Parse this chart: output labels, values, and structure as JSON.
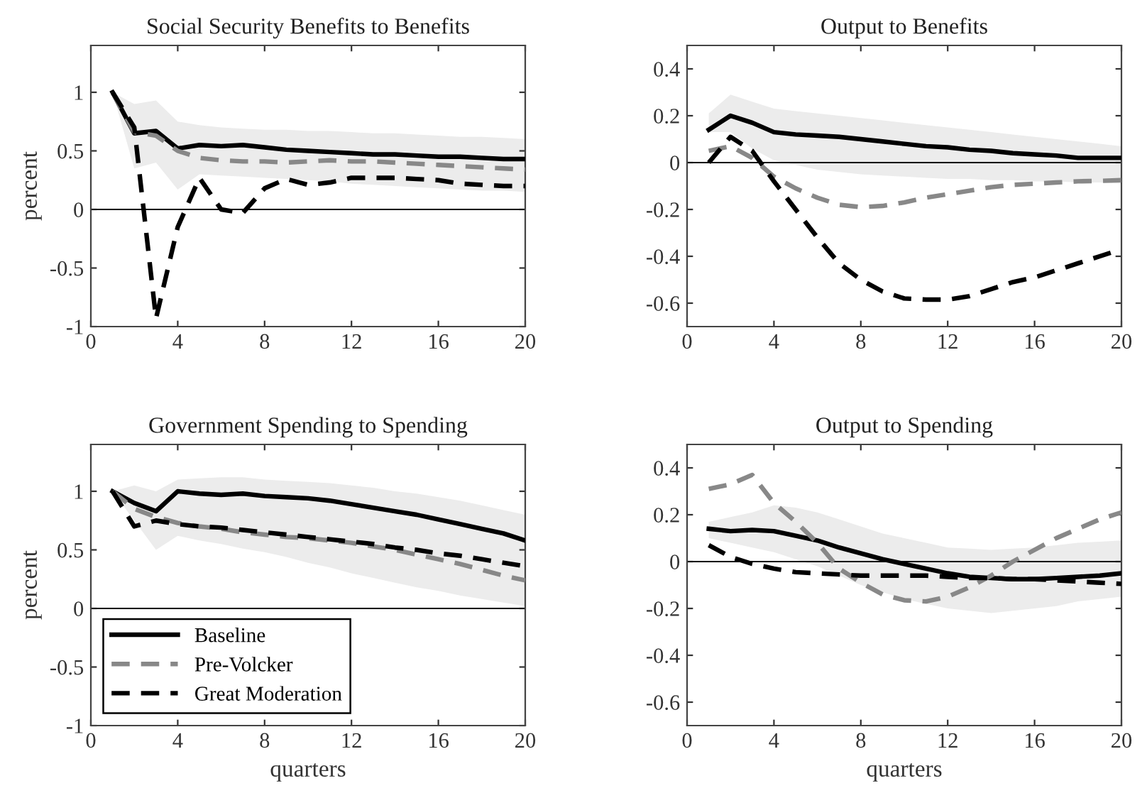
{
  "chart_data": [
    {
      "type": "line",
      "title": "Social Security Benefits to Benefits",
      "ylabel": "percent",
      "x": [
        1,
        2,
        3,
        4,
        5,
        6,
        7,
        8,
        9,
        10,
        11,
        12,
        13,
        14,
        15,
        16,
        17,
        18,
        19,
        20
      ],
      "xlim": [
        0,
        20
      ],
      "xticks": [
        0,
        4,
        8,
        12,
        16,
        20
      ],
      "ylim": [
        -1,
        1.4
      ],
      "yticks": [
        -1,
        -0.5,
        0,
        0.5,
        1
      ],
      "grid": false,
      "legend": false,
      "ref_lines": [
        {
          "axis": "y",
          "value": 0,
          "color": "#000000"
        }
      ],
      "series": [
        {
          "color": "#000000",
          "line_style": "solid",
          "values": [
            1.0,
            0.65,
            0.67,
            0.52,
            0.55,
            0.54,
            0.55,
            0.53,
            0.51,
            0.5,
            0.49,
            0.48,
            0.47,
            0.47,
            0.46,
            0.45,
            0.45,
            0.44,
            0.43,
            0.43
          ],
          "lower": [
            1.0,
            0.35,
            0.4,
            0.17,
            0.3,
            0.29,
            0.28,
            0.27,
            0.26,
            0.25,
            0.24,
            0.22,
            0.21,
            0.2,
            0.19,
            0.18,
            0.17,
            0.16,
            0.16,
            0.15
          ],
          "upper": [
            1.0,
            0.9,
            0.93,
            0.75,
            0.72,
            0.7,
            0.69,
            0.68,
            0.68,
            0.67,
            0.67,
            0.66,
            0.65,
            0.65,
            0.64,
            0.63,
            0.62,
            0.62,
            0.61,
            0.6
          ]
        },
        {
          "color": "#888888",
          "line_style": "dashed",
          "values": [
            1.0,
            0.66,
            0.63,
            0.5,
            0.44,
            0.42,
            0.41,
            0.41,
            0.4,
            0.41,
            0.42,
            0.41,
            0.41,
            0.4,
            0.39,
            0.38,
            0.37,
            0.36,
            0.35,
            0.34
          ]
        },
        {
          "color": "#000000",
          "line_style": "dashed",
          "values": [
            1.0,
            0.7,
            -0.93,
            -0.15,
            0.27,
            0.0,
            -0.03,
            0.18,
            0.26,
            0.21,
            0.23,
            0.27,
            0.27,
            0.27,
            0.26,
            0.25,
            0.22,
            0.21,
            0.2,
            0.2
          ]
        }
      ]
    },
    {
      "type": "line",
      "title": "Output to Benefits",
      "x": [
        1,
        2,
        3,
        4,
        5,
        6,
        7,
        8,
        9,
        10,
        11,
        12,
        13,
        14,
        15,
        16,
        17,
        18,
        19,
        20
      ],
      "xlim": [
        0,
        20
      ],
      "xticks": [
        0,
        4,
        8,
        12,
        16,
        20
      ],
      "ylim": [
        -0.7,
        0.5
      ],
      "yticks": [
        -0.6,
        -0.4,
        -0.2,
        0,
        0.2,
        0.4
      ],
      "grid": false,
      "legend": false,
      "ref_lines": [
        {
          "axis": "y",
          "value": 0,
          "color": "#000000"
        }
      ],
      "series": [
        {
          "color": "#000000",
          "line_style": "solid",
          "values": [
            0.14,
            0.2,
            0.17,
            0.13,
            0.12,
            0.115,
            0.11,
            0.1,
            0.09,
            0.08,
            0.07,
            0.065,
            0.055,
            0.05,
            0.04,
            0.035,
            0.03,
            0.02,
            0.02,
            0.02
          ],
          "lower": [
            0.13,
            0.13,
            0.06,
            0.01,
            -0.01,
            -0.03,
            -0.04,
            -0.05,
            -0.055,
            -0.06,
            -0.065,
            -0.07,
            -0.07,
            -0.075,
            -0.075,
            -0.08,
            -0.08,
            -0.085,
            -0.085,
            -0.09
          ],
          "upper": [
            0.21,
            0.29,
            0.26,
            0.23,
            0.22,
            0.21,
            0.2,
            0.19,
            0.18,
            0.17,
            0.16,
            0.15,
            0.14,
            0.13,
            0.12,
            0.11,
            0.1,
            0.09,
            0.08,
            0.07
          ]
        },
        {
          "color": "#888888",
          "line_style": "dashed",
          "values": [
            0.05,
            0.07,
            0.02,
            -0.06,
            -0.11,
            -0.15,
            -0.18,
            -0.19,
            -0.185,
            -0.17,
            -0.15,
            -0.135,
            -0.12,
            -0.105,
            -0.095,
            -0.09,
            -0.085,
            -0.08,
            -0.078,
            -0.075
          ]
        },
        {
          "color": "#000000",
          "line_style": "dashed",
          "values": [
            0.0,
            0.11,
            0.05,
            -0.08,
            -0.2,
            -0.32,
            -0.43,
            -0.5,
            -0.55,
            -0.58,
            -0.585,
            -0.585,
            -0.57,
            -0.54,
            -0.51,
            -0.49,
            -0.46,
            -0.43,
            -0.4,
            -0.37
          ]
        }
      ]
    },
    {
      "type": "line",
      "title": "Government Spending to Spending",
      "ylabel": "percent",
      "xlabel": "quarters",
      "x": [
        1,
        2,
        3,
        4,
        5,
        6,
        7,
        8,
        9,
        10,
        11,
        12,
        13,
        14,
        15,
        16,
        17,
        18,
        19,
        20
      ],
      "xlim": [
        0,
        20
      ],
      "xticks": [
        0,
        4,
        8,
        12,
        16,
        20
      ],
      "ylim": [
        -1,
        1.4
      ],
      "yticks": [
        -1,
        -0.5,
        0,
        0.5,
        1
      ],
      "grid": false,
      "legend": "bottom left",
      "ref_lines": [
        {
          "axis": "y",
          "value": 0,
          "color": "#000000"
        }
      ],
      "series": [
        {
          "name": "Baseline",
          "color": "#000000",
          "line_style": "solid",
          "values": [
            1.0,
            0.9,
            0.83,
            1.0,
            0.98,
            0.97,
            0.98,
            0.96,
            0.95,
            0.94,
            0.92,
            0.89,
            0.86,
            0.83,
            0.8,
            0.76,
            0.72,
            0.68,
            0.64,
            0.58
          ],
          "lower": [
            1.0,
            0.75,
            0.5,
            0.62,
            0.58,
            0.55,
            0.51,
            0.48,
            0.44,
            0.39,
            0.35,
            0.3,
            0.26,
            0.22,
            0.18,
            0.15,
            0.11,
            0.08,
            0.05,
            0.02
          ],
          "upper": [
            1.0,
            1.05,
            1.0,
            1.1,
            1.11,
            1.12,
            1.12,
            1.1,
            1.09,
            1.08,
            1.07,
            1.05,
            1.03,
            1.0,
            0.98,
            0.95,
            0.92,
            0.88,
            0.84,
            0.8
          ]
        },
        {
          "name": "Pre-Volcker",
          "color": "#888888",
          "line_style": "dashed",
          "values": [
            1.0,
            0.85,
            0.78,
            0.73,
            0.7,
            0.68,
            0.65,
            0.63,
            0.61,
            0.6,
            0.58,
            0.56,
            0.53,
            0.5,
            0.46,
            0.42,
            0.38,
            0.33,
            0.28,
            0.24
          ]
        },
        {
          "name": "Great Moderation",
          "color": "#000000",
          "line_style": "dashed",
          "values": [
            1.0,
            0.7,
            0.75,
            0.72,
            0.7,
            0.69,
            0.67,
            0.65,
            0.63,
            0.61,
            0.59,
            0.57,
            0.55,
            0.52,
            0.5,
            0.47,
            0.45,
            0.42,
            0.39,
            0.36
          ]
        }
      ]
    },
    {
      "type": "line",
      "title": "Output to Spending",
      "xlabel": "quarters",
      "x": [
        1,
        2,
        3,
        4,
        5,
        6,
        7,
        8,
        9,
        10,
        11,
        12,
        13,
        14,
        15,
        16,
        17,
        18,
        19,
        20
      ],
      "xlim": [
        0,
        20
      ],
      "xticks": [
        0,
        4,
        8,
        12,
        16,
        20
      ],
      "ylim": [
        -0.7,
        0.5
      ],
      "yticks": [
        -0.6,
        -0.4,
        -0.2,
        0,
        0.2,
        0.4
      ],
      "grid": false,
      "legend": false,
      "ref_lines": [
        {
          "axis": "y",
          "value": 0,
          "color": "#000000"
        }
      ],
      "series": [
        {
          "color": "#000000",
          "line_style": "solid",
          "values": [
            0.14,
            0.13,
            0.135,
            0.13,
            0.11,
            0.09,
            0.06,
            0.035,
            0.01,
            -0.01,
            -0.03,
            -0.05,
            -0.065,
            -0.07,
            -0.075,
            -0.075,
            -0.07,
            -0.065,
            -0.06,
            -0.05
          ],
          "lower": [
            0.1,
            0.08,
            0.06,
            0.04,
            0.01,
            -0.02,
            -0.06,
            -0.1,
            -0.13,
            -0.16,
            -0.18,
            -0.2,
            -0.21,
            -0.22,
            -0.21,
            -0.2,
            -0.19,
            -0.17,
            -0.16,
            -0.15
          ],
          "upper": [
            0.17,
            0.19,
            0.21,
            0.24,
            0.23,
            0.21,
            0.18,
            0.15,
            0.12,
            0.1,
            0.08,
            0.06,
            0.055,
            0.05,
            0.055,
            0.06,
            0.07,
            0.08,
            0.085,
            0.09
          ]
        },
        {
          "color": "#888888",
          "line_style": "dashed",
          "values": [
            0.31,
            0.33,
            0.37,
            0.25,
            0.17,
            0.08,
            -0.03,
            -0.09,
            -0.14,
            -0.165,
            -0.17,
            -0.15,
            -0.11,
            -0.06,
            0.0,
            0.05,
            0.1,
            0.14,
            0.18,
            0.21
          ]
        },
        {
          "color": "#000000",
          "line_style": "dashed",
          "values": [
            0.07,
            0.02,
            -0.01,
            -0.03,
            -0.045,
            -0.05,
            -0.055,
            -0.06,
            -0.06,
            -0.06,
            -0.06,
            -0.065,
            -0.07,
            -0.07,
            -0.075,
            -0.075,
            -0.08,
            -0.085,
            -0.09,
            -0.095
          ]
        }
      ]
    }
  ]
}
